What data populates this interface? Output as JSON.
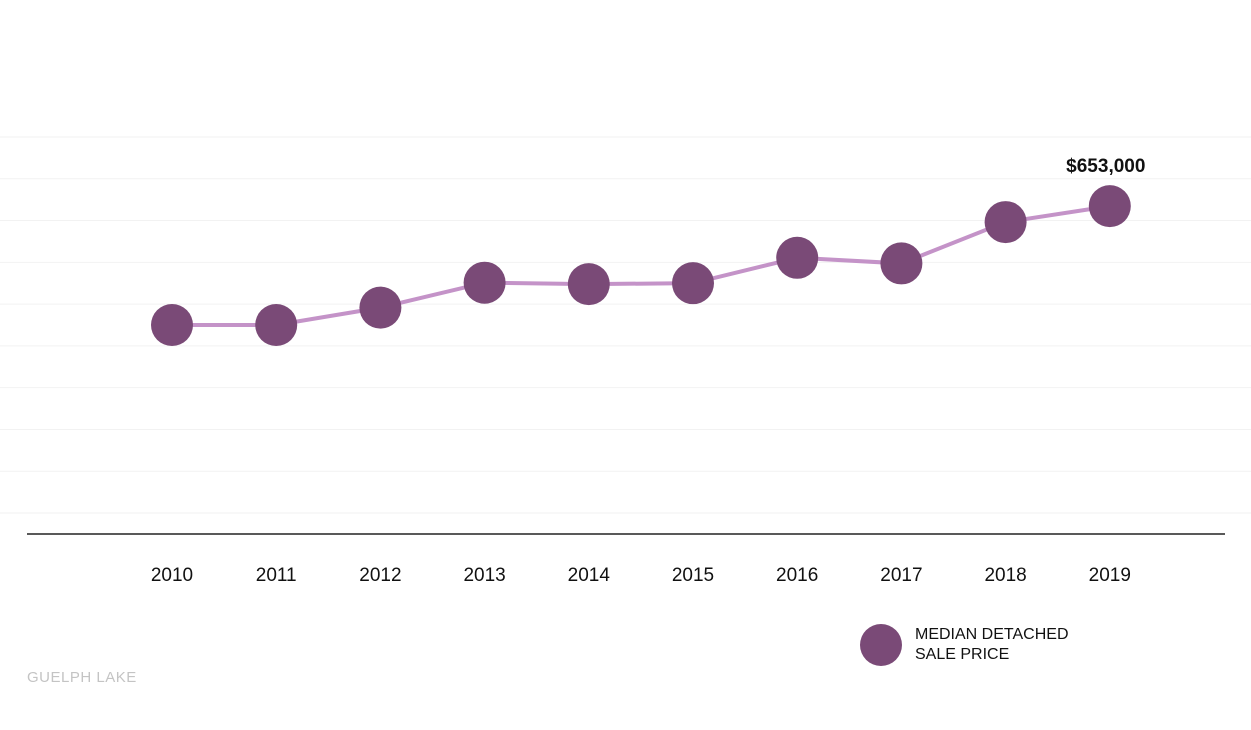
{
  "chart_data": {
    "type": "line",
    "categories": [
      "2010",
      "2011",
      "2012",
      "2013",
      "2014",
      "2015",
      "2016",
      "2017",
      "2018",
      "2019"
    ],
    "series": [
      {
        "name": "MEDIAN DETACHED SALE PRICE",
        "values": [
          400000,
          400000,
          437000,
          490000,
          487000,
          489000,
          543000,
          531000,
          619000,
          653000
        ]
      }
    ],
    "ylim": [
      0,
      800000
    ],
    "grid": true,
    "legend_position": "bottom-right",
    "annotations": [
      {
        "category": "2019",
        "text": "$653,000"
      }
    ]
  },
  "footer": {
    "label": "GUELPH LAKE"
  },
  "colors": {
    "marker": "#7a4a77",
    "line": "#c493c8",
    "grid": "#f2f2f2",
    "axis": "#222222"
  }
}
